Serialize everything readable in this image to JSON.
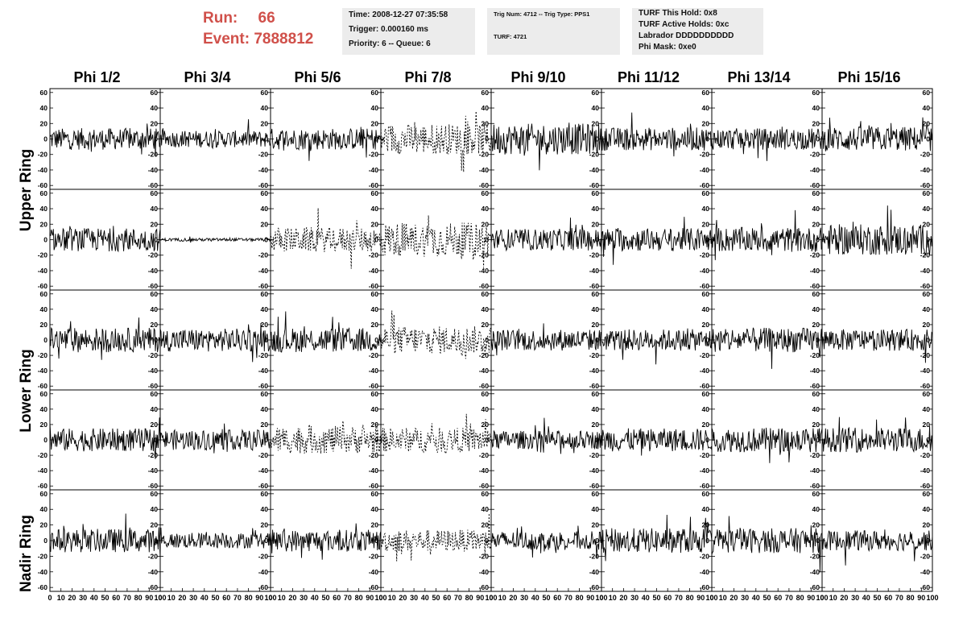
{
  "run": {
    "label": "Run:",
    "value": "66"
  },
  "event": {
    "label": "Event:",
    "value": "7888812"
  },
  "box1": {
    "time": "Time: 2008-12-27 07:35:58",
    "trigger": "Trigger: 0.000160 ms",
    "priority": "Priority: 6 -- Queue: 6"
  },
  "box2": {
    "trig": "Trig Num: 4712 -- Trig Type: PPS1",
    "turf": "TURF: 4721"
  },
  "box3": {
    "hold": "TURF This Hold: 0x8",
    "active": "TURF Active Holds: 0xc",
    "labrador": "Labrador DDDDDDDDDD",
    "mask": "Phi Mask: 0xe0"
  },
  "phi_headers": [
    "Phi 1/2",
    "Phi 3/4",
    "Phi 5/6",
    "Phi 7/8",
    "Phi 9/10",
    "Phi 11/12",
    "Phi 13/14",
    "Phi 15/16"
  ],
  "ring_labels": {
    "upper": "Upper Ring",
    "lower": "Lower Ring",
    "nadir": "Nadir Ring"
  },
  "chart_data": {
    "type": "line",
    "description_grid": "8 columns x 5 rows of waveform panels",
    "ylim": [
      -65,
      65
    ],
    "y_ticks": [
      -60,
      -40,
      -20,
      0,
      20,
      40,
      60
    ],
    "xlim": [
      0,
      100
    ],
    "x_ticks_per_panel": [
      0,
      10,
      20,
      30,
      40,
      50,
      60,
      70,
      80,
      90,
      100
    ],
    "panels": [
      {
        "row": 0,
        "col": 0,
        "amp": 14,
        "style": "solid"
      },
      {
        "row": 0,
        "col": 1,
        "amp": 11,
        "style": "solid"
      },
      {
        "row": 0,
        "col": 2,
        "amp": 14,
        "style": "solid"
      },
      {
        "row": 0,
        "col": 3,
        "amp": 20,
        "style": "dashed"
      },
      {
        "row": 0,
        "col": 4,
        "amp": 20,
        "style": "solid"
      },
      {
        "row": 0,
        "col": 5,
        "amp": 15,
        "style": "solid"
      },
      {
        "row": 0,
        "col": 6,
        "amp": 14,
        "style": "solid"
      },
      {
        "row": 0,
        "col": 7,
        "amp": 16,
        "style": "solid"
      },
      {
        "row": 1,
        "col": 0,
        "amp": 15,
        "style": "solid"
      },
      {
        "row": 1,
        "col": 1,
        "amp": 2,
        "style": "solid"
      },
      {
        "row": 1,
        "col": 2,
        "amp": 16,
        "style": "dashed"
      },
      {
        "row": 1,
        "col": 3,
        "amp": 22,
        "style": "dashed"
      },
      {
        "row": 1,
        "col": 4,
        "amp": 14,
        "style": "solid"
      },
      {
        "row": 1,
        "col": 5,
        "amp": 15,
        "style": "solid"
      },
      {
        "row": 1,
        "col": 6,
        "amp": 16,
        "style": "solid"
      },
      {
        "row": 1,
        "col": 7,
        "amp": 20,
        "style": "solid"
      },
      {
        "row": 2,
        "col": 0,
        "amp": 16,
        "style": "solid"
      },
      {
        "row": 2,
        "col": 1,
        "amp": 15,
        "style": "solid"
      },
      {
        "row": 2,
        "col": 2,
        "amp": 16,
        "style": "solid"
      },
      {
        "row": 2,
        "col": 3,
        "amp": 18,
        "style": "dashed"
      },
      {
        "row": 2,
        "col": 4,
        "amp": 14,
        "style": "solid"
      },
      {
        "row": 2,
        "col": 5,
        "amp": 14,
        "style": "solid"
      },
      {
        "row": 2,
        "col": 6,
        "amp": 16,
        "style": "solid"
      },
      {
        "row": 2,
        "col": 7,
        "amp": 14,
        "style": "solid"
      },
      {
        "row": 3,
        "col": 0,
        "amp": 15,
        "style": "solid"
      },
      {
        "row": 3,
        "col": 1,
        "amp": 13,
        "style": "solid"
      },
      {
        "row": 3,
        "col": 2,
        "amp": 18,
        "style": "dashed"
      },
      {
        "row": 3,
        "col": 3,
        "amp": 16,
        "style": "dashed"
      },
      {
        "row": 3,
        "col": 4,
        "amp": 12,
        "style": "solid"
      },
      {
        "row": 3,
        "col": 5,
        "amp": 15,
        "style": "solid"
      },
      {
        "row": 3,
        "col": 6,
        "amp": 16,
        "style": "solid"
      },
      {
        "row": 3,
        "col": 7,
        "amp": 16,
        "style": "solid"
      },
      {
        "row": 4,
        "col": 0,
        "amp": 15,
        "style": "solid"
      },
      {
        "row": 4,
        "col": 1,
        "amp": 10,
        "style": "solid"
      },
      {
        "row": 4,
        "col": 2,
        "amp": 14,
        "style": "solid"
      },
      {
        "row": 4,
        "col": 3,
        "amp": 14,
        "style": "dashed"
      },
      {
        "row": 4,
        "col": 4,
        "amp": 12,
        "style": "solid"
      },
      {
        "row": 4,
        "col": 5,
        "amp": 16,
        "style": "solid"
      },
      {
        "row": 4,
        "col": 6,
        "amp": 16,
        "style": "solid"
      },
      {
        "row": 4,
        "col": 7,
        "amp": 13,
        "style": "solid"
      }
    ]
  }
}
